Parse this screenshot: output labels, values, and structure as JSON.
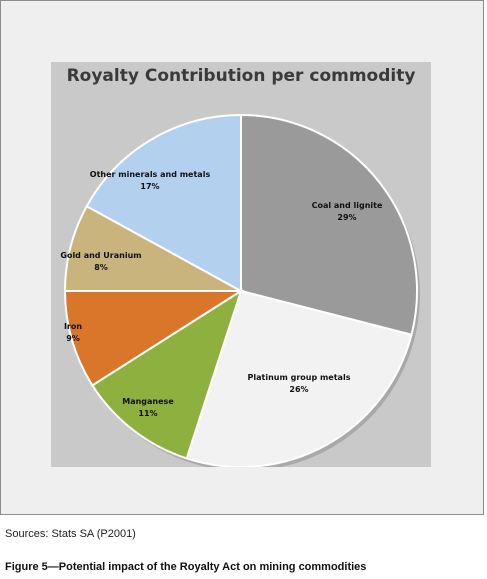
{
  "chart_data": {
    "type": "pie",
    "title": "Royalty Contribution per commodity",
    "slices": [
      {
        "label": "Coal and lignite",
        "value_label": "29%",
        "value": 29,
        "color": "#9a9a9a"
      },
      {
        "label": "Platinum group metals",
        "value_label": "26%",
        "value": 26,
        "color": "#f2f2f2"
      },
      {
        "label": "Manganese",
        "value_label": "11%",
        "value": 11,
        "color": "#8db03f"
      },
      {
        "label": "Iron",
        "value_label": "9%",
        "value": 9,
        "color": "#d9762a"
      },
      {
        "label": "Gold and Uranium",
        "value_label": "8%",
        "value": 8,
        "color": "#c9b47e"
      },
      {
        "label": "Other minerals and metals",
        "value_label": "17%",
        "value": 17,
        "color": "#b3d1ee"
      }
    ]
  },
  "source": "Sources: Stats SA (P2001)",
  "caption": "Figure 5—Potential impact of the Royalty Act on mining commodities"
}
